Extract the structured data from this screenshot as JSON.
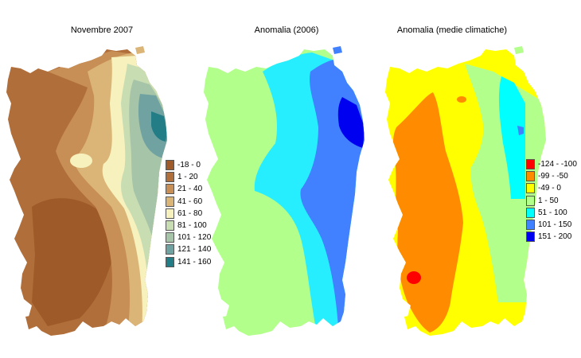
{
  "maps": [
    {
      "title": "Novembre 2007",
      "legend": [
        {
          "label": "-18 - 0",
          "color": "#9e5a28"
        },
        {
          "label": "1 - 20",
          "color": "#b06e3a"
        },
        {
          "label": "21 - 40",
          "color": "#c78e55"
        },
        {
          "label": "41 - 60",
          "color": "#dbb577"
        },
        {
          "label": "61 - 80",
          "color": "#f7f2bd"
        },
        {
          "label": "81 - 100",
          "color": "#c9ddb2"
        },
        {
          "label": "101 - 120",
          "color": "#a6c4a8"
        },
        {
          "label": "121 - 140",
          "color": "#6fa2a0"
        },
        {
          "label": "141 - 160",
          "color": "#227d86"
        }
      ]
    },
    {
      "title": "Anomalia (2006)",
      "colors": {
        "green": "#b3ff8c",
        "cyan": "#27eeff",
        "blue": "#4180ff",
        "navy": "#0000f0"
      }
    },
    {
      "title": "Anomalia (medie climatiche)",
      "legend": [
        {
          "label": "-124 - -100",
          "color": "#ff0000"
        },
        {
          "label": "-99 - -50",
          "color": "#ff8c00"
        },
        {
          "label": "-49 - 0",
          "color": "#ffff00"
        },
        {
          "label": "1 - 50",
          "color": "#b3ff8c"
        },
        {
          "label": "51 - 100",
          "color": "#00ffff"
        },
        {
          "label": "101 - 150",
          "color": "#4180ff"
        },
        {
          "label": "151 - 200",
          "color": "#0000f0"
        }
      ]
    }
  ]
}
